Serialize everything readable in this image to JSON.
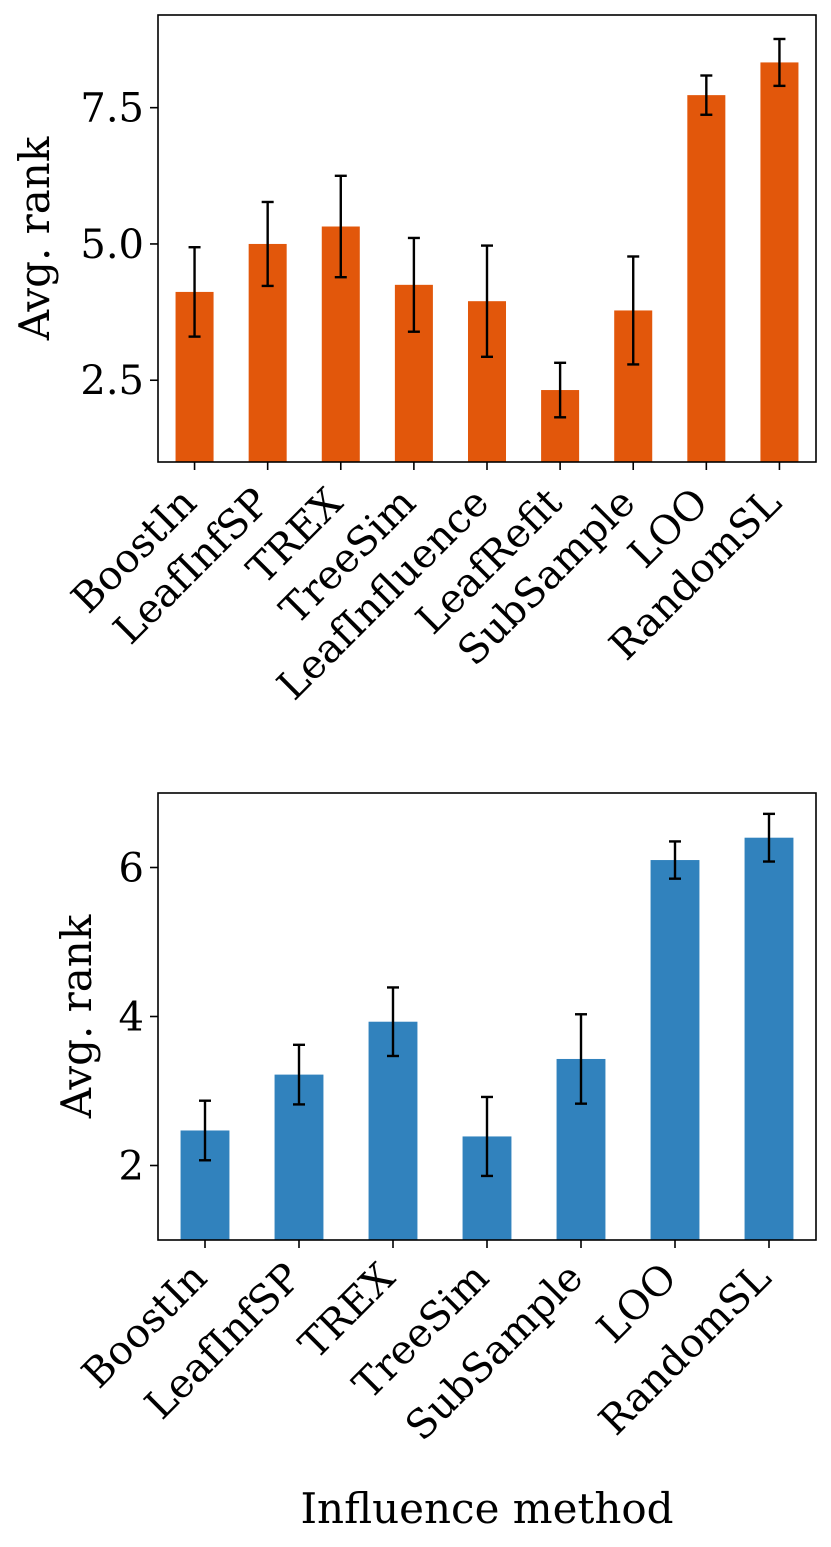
{
  "chart_data": [
    {
      "type": "bar",
      "title": "",
      "xlabel": "",
      "ylabel": "Avg. rank",
      "color": "#e2570b",
      "categories": [
        "BoostIn",
        "LeafInfSP",
        "TREX",
        "TreeSim",
        "LeafInfluence",
        "LeafRefit",
        "SubSample",
        "LOO",
        "RandomSL"
      ],
      "values": [
        4.12,
        5.0,
        5.32,
        4.25,
        3.95,
        2.32,
        3.78,
        7.73,
        8.33
      ],
      "errors": [
        0.82,
        0.77,
        0.93,
        0.86,
        1.02,
        0.5,
        0.99,
        0.36,
        0.43
      ],
      "ylim": [
        1.0,
        9.2
      ],
      "yticks": [
        2.5,
        5.0,
        7.5
      ],
      "ytick_labels": [
        "2.5",
        "5.0",
        "7.5"
      ],
      "grid": false
    },
    {
      "type": "bar",
      "title": "",
      "xlabel": "Influence method",
      "ylabel": "Avg. rank",
      "color": "#3182bd",
      "categories": [
        "BoostIn",
        "LeafInfSP",
        "TREX",
        "TreeSim",
        "SubSample",
        "LOO",
        "RandomSL"
      ],
      "values": [
        2.47,
        3.22,
        3.93,
        2.39,
        3.43,
        6.1,
        6.4
      ],
      "errors": [
        0.4,
        0.4,
        0.46,
        0.53,
        0.6,
        0.25,
        0.32
      ],
      "ylim": [
        1.0,
        7.0
      ],
      "yticks": [
        2,
        4,
        6
      ],
      "ytick_labels": [
        "2",
        "4",
        "6"
      ],
      "grid": false
    }
  ]
}
